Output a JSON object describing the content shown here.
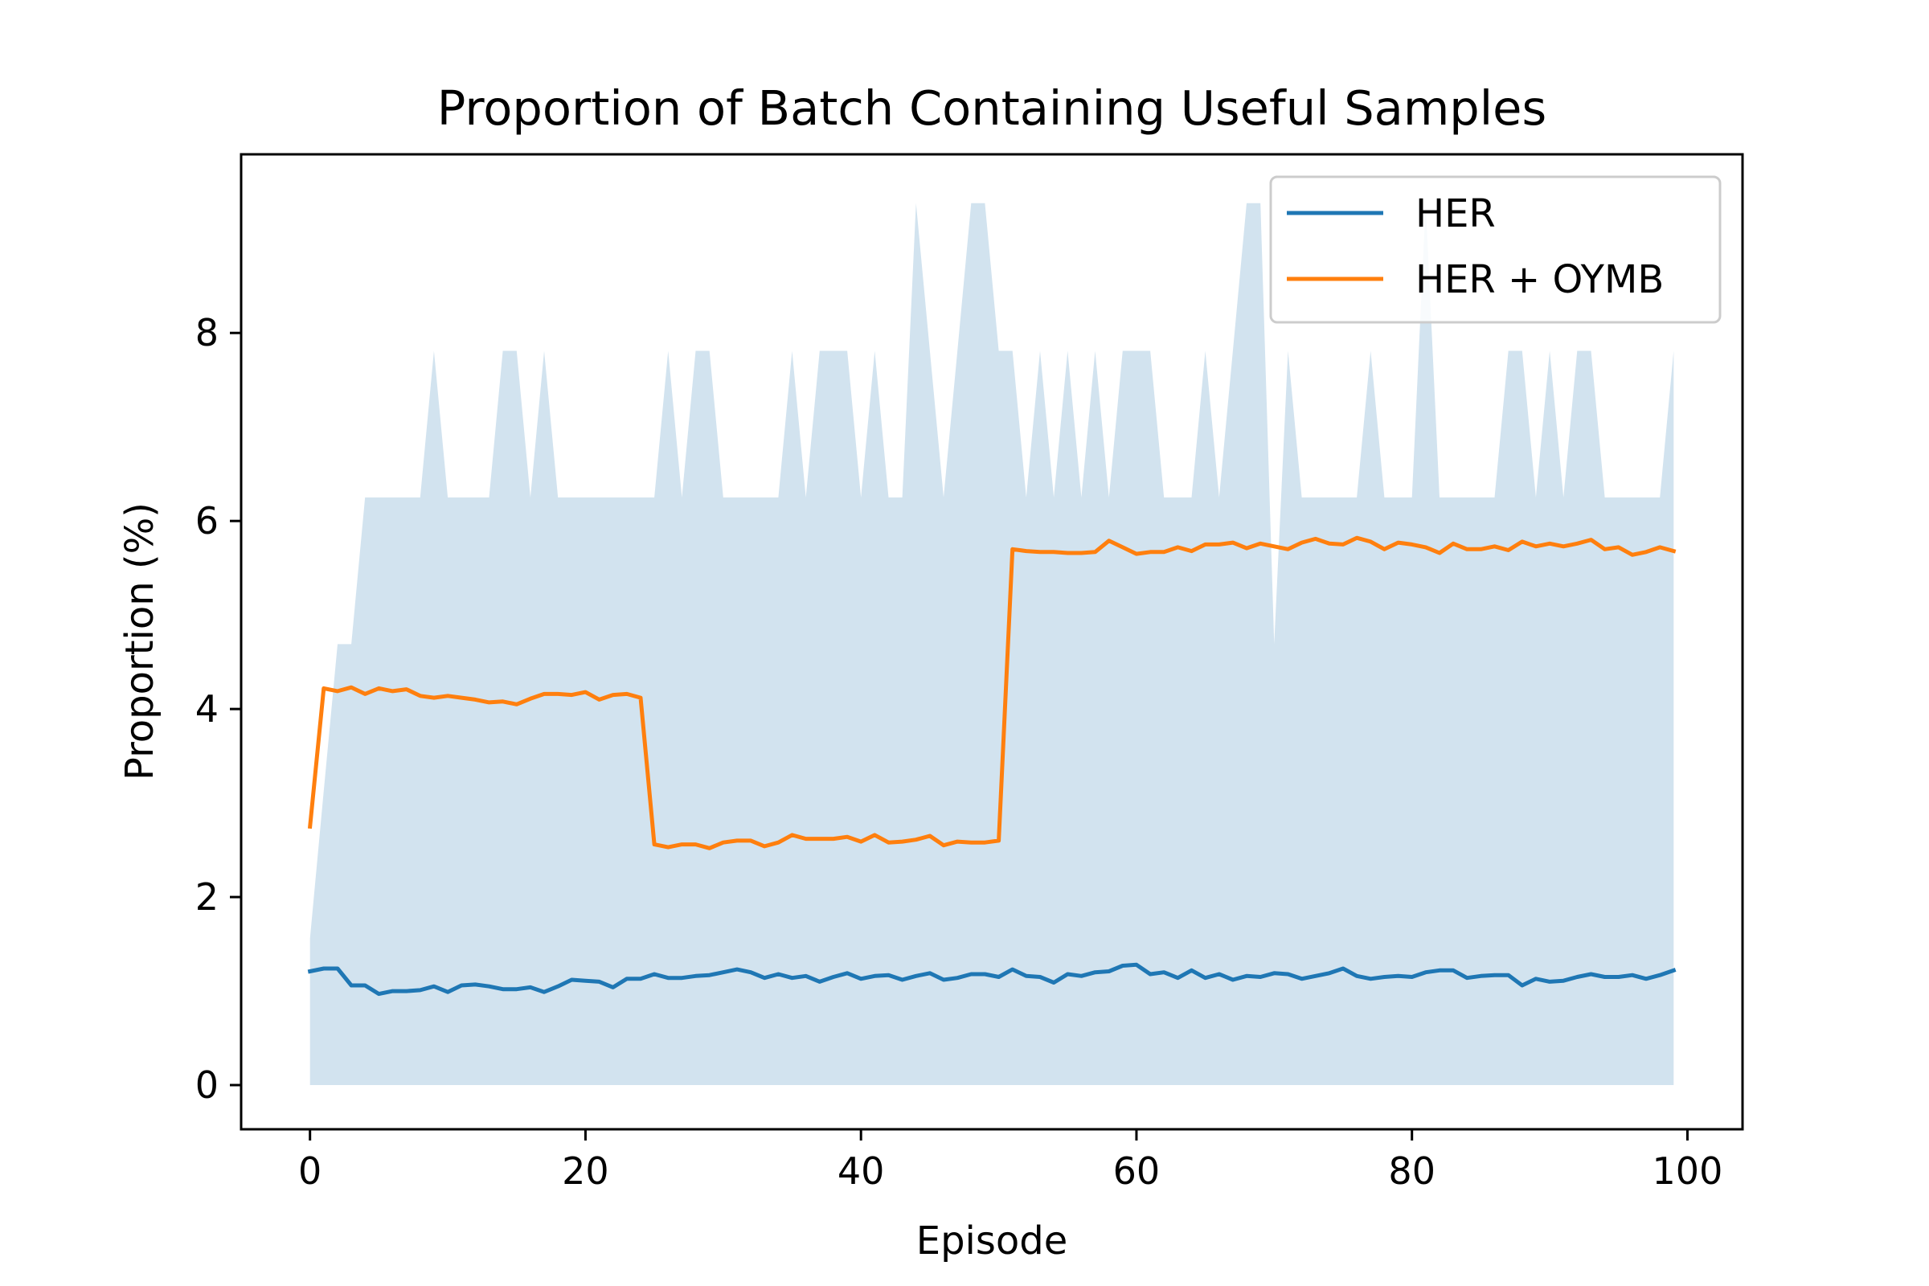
{
  "chart_data": {
    "type": "line",
    "title": "Proportion of Batch Containing Useful Samples",
    "xlabel": "Episode",
    "ylabel": "Proportion (%)",
    "xlim": [
      -5,
      104
    ],
    "ylim": [
      -0.47,
      9.9
    ],
    "xticks": [
      0,
      20,
      40,
      60,
      80,
      100
    ],
    "yticks": [
      0,
      2,
      4,
      6,
      8
    ],
    "legend_position": "top-right",
    "grid": false,
    "band": {
      "color": "#d2e3ef",
      "lower": 0,
      "x": [
        0,
        1,
        2,
        3,
        4,
        5,
        6,
        7,
        8,
        9,
        10,
        11,
        12,
        13,
        14,
        15,
        16,
        17,
        18,
        19,
        20,
        21,
        22,
        23,
        24,
        25,
        26,
        27,
        28,
        29,
        30,
        31,
        32,
        33,
        34,
        35,
        36,
        37,
        38,
        39,
        40,
        41,
        42,
        43,
        44,
        45,
        46,
        47,
        48,
        49,
        50,
        51,
        52,
        53,
        54,
        55,
        56,
        57,
        58,
        59,
        60,
        61,
        62,
        63,
        64,
        65,
        66,
        67,
        68,
        69,
        70,
        71,
        72,
        73,
        74,
        75,
        76,
        77,
        78,
        79,
        80,
        81,
        82,
        83,
        84,
        85,
        86,
        87,
        88,
        89,
        90,
        91,
        92,
        93,
        94,
        95,
        96,
        97,
        98,
        99
      ],
      "upper": [
        1.56,
        3.13,
        4.69,
        4.69,
        6.25,
        6.25,
        6.25,
        6.25,
        6.25,
        7.81,
        6.25,
        6.25,
        6.25,
        6.25,
        7.81,
        7.81,
        6.25,
        7.81,
        6.25,
        6.25,
        6.25,
        6.25,
        6.25,
        6.25,
        6.25,
        6.25,
        7.81,
        6.25,
        7.81,
        7.81,
        6.25,
        6.25,
        6.25,
        6.25,
        6.25,
        7.81,
        6.25,
        7.81,
        7.81,
        7.81,
        6.25,
        7.81,
        6.25,
        6.25,
        9.38,
        7.81,
        6.25,
        7.81,
        9.38,
        9.38,
        7.81,
        7.81,
        6.25,
        7.81,
        6.25,
        7.81,
        6.25,
        7.81,
        6.25,
        7.81,
        7.81,
        7.81,
        6.25,
        6.25,
        6.25,
        7.81,
        6.25,
        7.81,
        9.38,
        9.38,
        4.69,
        7.81,
        6.25,
        6.25,
        6.25,
        6.25,
        6.25,
        7.81,
        6.25,
        6.25,
        6.25,
        9.38,
        6.25,
        6.25,
        6.25,
        6.25,
        6.25,
        7.81,
        7.81,
        6.25,
        7.81,
        6.25,
        7.81,
        7.81,
        6.25,
        6.25,
        6.25,
        6.25,
        6.25,
        7.81
      ]
    },
    "series": [
      {
        "name": "HER",
        "color": "#1f77b4",
        "x": [
          0,
          1,
          2,
          3,
          4,
          5,
          6,
          7,
          8,
          9,
          10,
          11,
          12,
          13,
          14,
          15,
          16,
          17,
          18,
          19,
          20,
          21,
          22,
          23,
          24,
          25,
          26,
          27,
          28,
          29,
          30,
          31,
          32,
          33,
          34,
          35,
          36,
          37,
          38,
          39,
          40,
          41,
          42,
          43,
          44,
          45,
          46,
          47,
          48,
          49,
          50,
          51,
          52,
          53,
          54,
          55,
          56,
          57,
          58,
          59,
          60,
          61,
          62,
          63,
          64,
          65,
          66,
          67,
          68,
          69,
          70,
          71,
          72,
          73,
          74,
          75,
          76,
          77,
          78,
          79,
          80,
          81,
          82,
          83,
          84,
          85,
          86,
          87,
          88,
          89,
          90,
          91,
          92,
          93,
          94,
          95,
          96,
          97,
          98,
          99
        ],
        "values": [
          1.21,
          1.24,
          1.24,
          1.06,
          1.06,
          0.97,
          1.0,
          1.0,
          1.01,
          1.05,
          0.99,
          1.06,
          1.07,
          1.05,
          1.02,
          1.02,
          1.04,
          0.99,
          1.05,
          1.12,
          1.11,
          1.1,
          1.04,
          1.13,
          1.13,
          1.18,
          1.14,
          1.14,
          1.16,
          1.17,
          1.2,
          1.23,
          1.2,
          1.14,
          1.18,
          1.14,
          1.16,
          1.1,
          1.15,
          1.19,
          1.13,
          1.16,
          1.17,
          1.12,
          1.16,
          1.19,
          1.12,
          1.14,
          1.18,
          1.18,
          1.15,
          1.23,
          1.16,
          1.15,
          1.09,
          1.18,
          1.16,
          1.2,
          1.21,
          1.27,
          1.28,
          1.18,
          1.2,
          1.14,
          1.22,
          1.14,
          1.18,
          1.12,
          1.16,
          1.15,
          1.19,
          1.18,
          1.13,
          1.16,
          1.19,
          1.24,
          1.16,
          1.13,
          1.15,
          1.16,
          1.15,
          1.2,
          1.22,
          1.22,
          1.14,
          1.16,
          1.17,
          1.17,
          1.06,
          1.13,
          1.1,
          1.11,
          1.15,
          1.18,
          1.15,
          1.15,
          1.17,
          1.13,
          1.17,
          1.22
        ]
      },
      {
        "name": "HER + OYMB",
        "color": "#ff7f0e",
        "x": [
          0,
          1,
          2,
          3,
          4,
          5,
          6,
          7,
          8,
          9,
          10,
          11,
          12,
          13,
          14,
          15,
          16,
          17,
          18,
          19,
          20,
          21,
          22,
          23,
          24,
          25,
          26,
          27,
          28,
          29,
          30,
          31,
          32,
          33,
          34,
          35,
          36,
          37,
          38,
          39,
          40,
          41,
          42,
          43,
          44,
          45,
          46,
          47,
          48,
          49,
          50,
          51,
          52,
          53,
          54,
          55,
          56,
          57,
          58,
          59,
          60,
          61,
          62,
          63,
          64,
          65,
          66,
          67,
          68,
          69,
          70,
          71,
          72,
          73,
          74,
          75,
          76,
          77,
          78,
          79,
          80,
          81,
          82,
          83,
          84,
          85,
          86,
          87,
          88,
          89,
          90,
          91,
          92,
          93,
          94,
          95,
          96,
          97,
          98,
          99
        ],
        "values": [
          2.75,
          4.22,
          4.19,
          4.23,
          4.16,
          4.22,
          4.19,
          4.21,
          4.14,
          4.12,
          4.14,
          4.12,
          4.1,
          4.07,
          4.08,
          4.05,
          4.11,
          4.16,
          4.16,
          4.15,
          4.18,
          4.1,
          4.15,
          4.16,
          4.12,
          2.56,
          2.53,
          2.56,
          2.56,
          2.52,
          2.58,
          2.6,
          2.6,
          2.54,
          2.58,
          2.66,
          2.62,
          2.62,
          2.62,
          2.64,
          2.59,
          2.66,
          2.58,
          2.59,
          2.61,
          2.65,
          2.55,
          2.59,
          2.58,
          2.58,
          2.6,
          5.7,
          5.68,
          5.67,
          5.67,
          5.66,
          5.66,
          5.67,
          5.79,
          5.72,
          5.65,
          5.67,
          5.67,
          5.72,
          5.68,
          5.75,
          5.75,
          5.77,
          5.71,
          5.76,
          5.73,
          5.7,
          5.77,
          5.81,
          5.76,
          5.75,
          5.82,
          5.78,
          5.7,
          5.77,
          5.75,
          5.72,
          5.66,
          5.76,
          5.7,
          5.7,
          5.73,
          5.69,
          5.78,
          5.73,
          5.76,
          5.73,
          5.76,
          5.8,
          5.7,
          5.72,
          5.64,
          5.67,
          5.72,
          5.68
        ]
      }
    ]
  }
}
